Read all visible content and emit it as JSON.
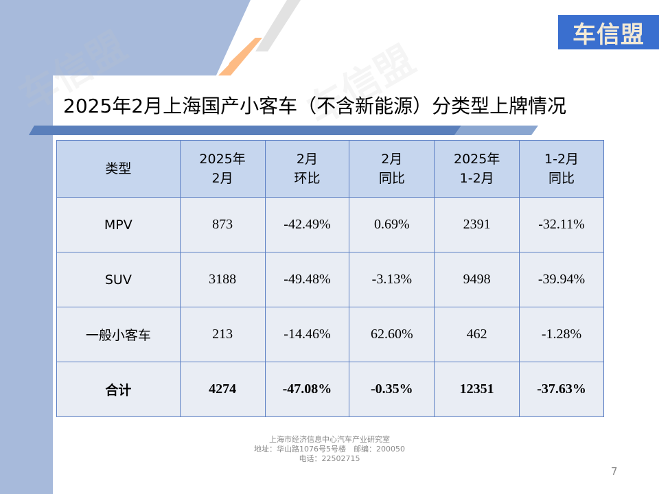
{
  "logo": "车信盟",
  "title": "2025年2月上海国产小客车（不含新能源）分类型上牌情况",
  "table": {
    "headers": [
      [
        "类型",
        ""
      ],
      [
        "2025年",
        "2月"
      ],
      [
        "2月",
        "环比"
      ],
      [
        "2月",
        "同比"
      ],
      [
        "2025年",
        "1-2月"
      ],
      [
        "1-2月",
        "同比"
      ]
    ],
    "rows": [
      [
        "MPV",
        "873",
        "-42.49%",
        "0.69%",
        "2391",
        "-32.11%"
      ],
      [
        "SUV",
        "3188",
        "-49.48%",
        "-3.13%",
        "9498",
        "-39.94%"
      ],
      [
        "一般小客车",
        "213",
        "-14.46%",
        "62.60%",
        "462",
        "-1.28%"
      ],
      [
        "合计",
        "4274",
        "-47.08%",
        "-0.35%",
        "12351",
        "-37.63%"
      ]
    ]
  },
  "footer": {
    "line1": "上海市经济信息中心汽车产业研究室",
    "line2": "地址：华山路1076号5号楼　邮编：200050",
    "line3": "电话：22502715"
  },
  "page_number": "7",
  "colors": {
    "panel": "#a7badb",
    "accent_orange": "#fdbb84",
    "bar": "#5a7fbb",
    "header": "#c6d6ee",
    "row": "#e9edf4"
  }
}
